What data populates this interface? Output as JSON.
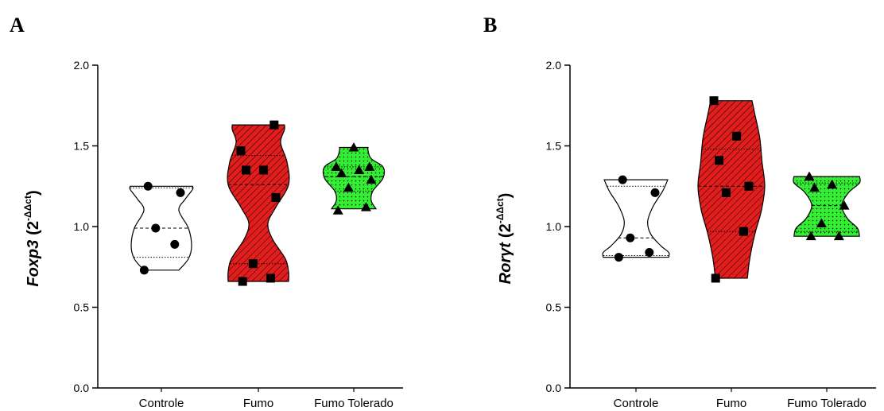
{
  "chart_data": [
    {
      "type": "violin",
      "panel": "A",
      "ylabel": {
        "gene": "Foxp3",
        "unit": "(2",
        "sup": "-ΔΔct",
        "close": ")"
      },
      "ylim": [
        0,
        2.0
      ],
      "yticks": [
        "0.0",
        "0.5",
        "1.0",
        "1.5",
        "2.0"
      ],
      "categories": [
        "Controle",
        "Fumo",
        "Fumo Tolerado"
      ],
      "colors": [
        "#ffffff",
        "#e11d1d",
        "#33ee33"
      ],
      "series": [
        {
          "points": [
            0.73,
            0.89,
            0.99,
            1.21,
            1.25
          ],
          "marker": "circle",
          "median": 0.99,
          "q1": 0.81,
          "q3": 1.24,
          "profile": [
            [
              0.73,
              0.55
            ],
            [
              0.8,
              0.85
            ],
            [
              0.88,
              0.95
            ],
            [
              0.99,
              0.85
            ],
            [
              1.1,
              0.55
            ],
            [
              1.17,
              0.75
            ],
            [
              1.23,
              0.98
            ],
            [
              1.25,
              0.98
            ]
          ]
        },
        {
          "points": [
            0.66,
            0.68,
            0.77,
            1.18,
            1.35,
            1.35,
            1.47,
            1.63
          ],
          "marker": "square",
          "median": 1.26,
          "q1": 0.77,
          "q3": 1.44,
          "profile": [
            [
              0.66,
              0.95
            ],
            [
              0.72,
              0.95
            ],
            [
              0.8,
              0.85
            ],
            [
              0.92,
              0.45
            ],
            [
              1.02,
              0.3
            ],
            [
              1.12,
              0.55
            ],
            [
              1.26,
              0.95
            ],
            [
              1.4,
              0.9
            ],
            [
              1.52,
              0.7
            ],
            [
              1.6,
              0.82
            ],
            [
              1.63,
              0.82
            ]
          ]
        },
        {
          "points": [
            1.1,
            1.12,
            1.24,
            1.29,
            1.33,
            1.35,
            1.37,
            1.37,
            1.49
          ],
          "marker": "triangle",
          "median": 1.31,
          "q1": 1.22,
          "q3": 1.37,
          "profile": [
            [
              1.11,
              0.7
            ],
            [
              1.16,
              0.55
            ],
            [
              1.22,
              0.6
            ],
            [
              1.3,
              0.92
            ],
            [
              1.37,
              0.92
            ],
            [
              1.42,
              0.55
            ],
            [
              1.47,
              0.45
            ],
            [
              1.49,
              0.45
            ]
          ]
        }
      ]
    },
    {
      "type": "violin",
      "panel": "B",
      "ylabel": {
        "gene": "Rorγt",
        "unit": "(2",
        "sup": "-ΔΔct",
        "close": ")"
      },
      "ylim": [
        0,
        2.0
      ],
      "yticks": [
        "0.0",
        "0.5",
        "1.0",
        "1.5",
        "2.0"
      ],
      "categories": [
        "Controle",
        "Fumo",
        "Fumo Tolerado"
      ],
      "colors": [
        "#ffffff",
        "#e11d1d",
        "#33ee33"
      ],
      "series": [
        {
          "points": [
            0.81,
            0.84,
            0.93,
            1.21,
            1.29
          ],
          "marker": "circle",
          "median": 0.93,
          "q1": 0.82,
          "q3": 1.25,
          "profile": [
            [
              0.81,
              0.98
            ],
            [
              0.84,
              0.98
            ],
            [
              0.88,
              0.75
            ],
            [
              0.95,
              0.45
            ],
            [
              1.03,
              0.35
            ],
            [
              1.12,
              0.5
            ],
            [
              1.22,
              0.8
            ],
            [
              1.29,
              0.95
            ]
          ]
        },
        {
          "points": [
            0.68,
            0.97,
            1.21,
            1.25,
            1.41,
            1.56,
            1.78
          ],
          "marker": "square",
          "median": 1.25,
          "q1": 0.97,
          "q3": 1.48,
          "profile": [
            [
              0.68,
              0.48
            ],
            [
              0.8,
              0.55
            ],
            [
              0.95,
              0.7
            ],
            [
              1.1,
              0.9
            ],
            [
              1.25,
              1.0
            ],
            [
              1.4,
              0.92
            ],
            [
              1.55,
              0.85
            ],
            [
              1.7,
              0.7
            ],
            [
              1.78,
              0.62
            ]
          ]
        },
        {
          "points": [
            0.94,
            0.94,
            1.02,
            1.13,
            1.24,
            1.26,
            1.31
          ],
          "marker": "triangle",
          "median": 1.13,
          "q1": 0.97,
          "q3": 1.27,
          "profile": [
            [
              0.94,
              0.98
            ],
            [
              0.99,
              0.92
            ],
            [
              1.05,
              0.62
            ],
            [
              1.13,
              0.45
            ],
            [
              1.21,
              0.65
            ],
            [
              1.27,
              0.98
            ],
            [
              1.31,
              0.98
            ]
          ]
        }
      ]
    }
  ]
}
